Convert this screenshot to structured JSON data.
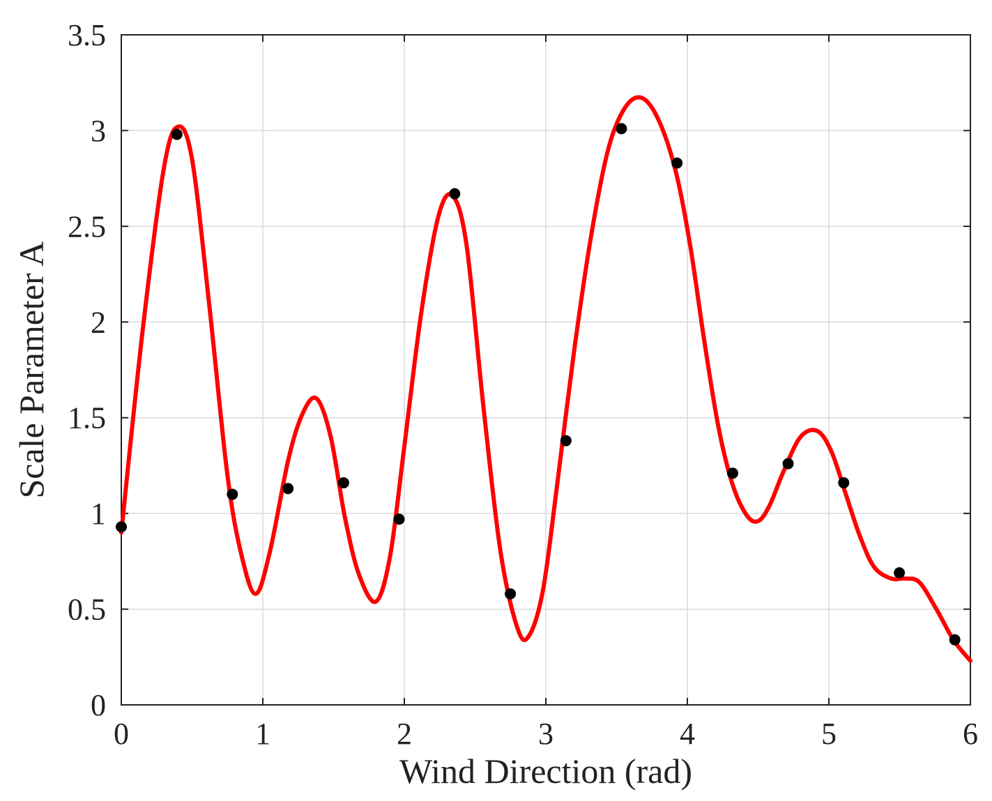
{
  "chart_data": {
    "type": "line",
    "title": "",
    "xlabel": "Wind Direction (rad)",
    "ylabel": "Scale Parameter A",
    "xlim": [
      0,
      6
    ],
    "ylim": [
      0,
      3.5
    ],
    "grid": true,
    "x_ticks": [
      "0",
      "1",
      "2",
      "3",
      "4",
      "5",
      "6"
    ],
    "y_ticks": [
      "0",
      "0.5",
      "1",
      "1.5",
      "2",
      "2.5",
      "3",
      "3.5"
    ],
    "series": [
      {
        "kind": "scatter",
        "color": "#000000",
        "x": [
          0,
          0.393,
          0.785,
          1.178,
          1.571,
          1.963,
          2.356,
          2.749,
          3.142,
          3.534,
          3.927,
          4.32,
          4.712,
          5.105,
          5.498,
          5.89
        ],
        "y": [
          0.93,
          2.98,
          1.1,
          1.13,
          1.16,
          0.97,
          2.67,
          0.58,
          1.38,
          3.01,
          2.83,
          1.21,
          1.26,
          1.16,
          0.69,
          0.34
        ]
      },
      {
        "kind": "line",
        "color": "#ff0000",
        "x": [
          0,
          0.15,
          0.3,
          0.4,
          0.5,
          0.62,
          0.75,
          0.85,
          0.95,
          1.05,
          1.18,
          1.28,
          1.38,
          1.48,
          1.58,
          1.68,
          1.8,
          1.9,
          2.0,
          2.12,
          2.24,
          2.34,
          2.44,
          2.56,
          2.68,
          2.8,
          2.88,
          2.98,
          3.08,
          3.2,
          3.32,
          3.44,
          3.56,
          3.68,
          3.8,
          3.92,
          4.02,
          4.12,
          4.22,
          4.32,
          4.42,
          4.5,
          4.58,
          4.68,
          4.8,
          4.92,
          5.02,
          5.12,
          5.22,
          5.32,
          5.44,
          5.54,
          5.64,
          5.76,
          5.88,
          6.0
        ],
        "y": [
          0.9,
          1.95,
          2.8,
          3.02,
          2.85,
          2.1,
          1.2,
          0.78,
          0.58,
          0.8,
          1.28,
          1.52,
          1.6,
          1.4,
          0.98,
          0.68,
          0.54,
          0.78,
          1.35,
          2.05,
          2.55,
          2.66,
          2.4,
          1.55,
          0.8,
          0.4,
          0.36,
          0.6,
          1.15,
          1.85,
          2.45,
          2.9,
          3.12,
          3.17,
          3.05,
          2.78,
          2.4,
          1.9,
          1.45,
          1.15,
          0.99,
          0.96,
          1.04,
          1.22,
          1.4,
          1.43,
          1.32,
          1.1,
          0.88,
          0.72,
          0.66,
          0.66,
          0.64,
          0.5,
          0.34,
          0.23
        ]
      }
    ]
  }
}
